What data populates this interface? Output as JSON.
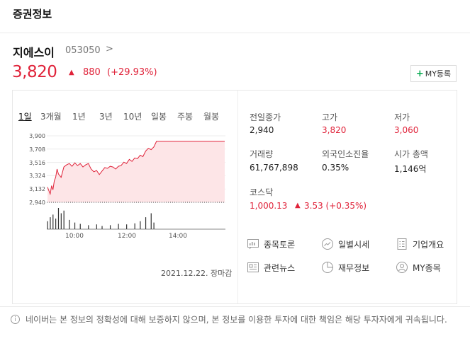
{
  "header": {
    "title": "증권정보"
  },
  "stock": {
    "name": "지에스이",
    "code": "053050",
    "code_arrow": ">",
    "price": "3,820",
    "change_arrow": "▲",
    "change": "880",
    "change_pct": "(+29.93%)",
    "my_button_plus": "+",
    "my_button_label": "MY등록"
  },
  "tabs": [
    {
      "label": "1일",
      "active": true
    },
    {
      "label": "3개월"
    },
    {
      "label": "1년"
    },
    {
      "label": "3년"
    },
    {
      "label": "10년"
    },
    {
      "label": "일봉"
    },
    {
      "label": "주봉"
    },
    {
      "label": "월봉"
    }
  ],
  "chart_data": {
    "type": "area",
    "y_tick_labels": [
      "3,900",
      "3,708",
      "3,516",
      "3,324",
      "3,132",
      "2,940"
    ],
    "x_tick_labels": [
      "10:00",
      "12:00",
      "14:00"
    ],
    "ylim": [
      2940,
      3900
    ],
    "reference_price": 2940,
    "price_x_hours": [
      9.0,
      9.05,
      9.1,
      9.15,
      9.2,
      9.25,
      9.3,
      9.35,
      9.4,
      9.5,
      9.6,
      9.7,
      9.8,
      9.9,
      10.0,
      10.1,
      10.2,
      10.3,
      10.4,
      10.5,
      10.6,
      10.7,
      10.8,
      10.9,
      11.0,
      11.1,
      11.2,
      11.3,
      11.4,
      11.5,
      11.6,
      11.7,
      11.8,
      11.9,
      12.0,
      12.1,
      12.2,
      12.3,
      12.4,
      12.5,
      12.6,
      12.7,
      12.8,
      12.9,
      13.0,
      13.5,
      14.0,
      14.5,
      15.0,
      15.5
    ],
    "price_values": [
      3160,
      3110,
      3060,
      3180,
      3120,
      3250,
      3300,
      3420,
      3350,
      3300,
      3450,
      3480,
      3500,
      3460,
      3510,
      3470,
      3500,
      3450,
      3480,
      3500,
      3420,
      3380,
      3400,
      3340,
      3390,
      3440,
      3430,
      3460,
      3450,
      3420,
      3460,
      3470,
      3520,
      3500,
      3560,
      3530,
      3580,
      3570,
      3620,
      3600,
      3680,
      3720,
      3700,
      3740,
      3820,
      3820,
      3820,
      3820,
      3820,
      3820
    ],
    "volume_x_hours": [
      9.0,
      9.1,
      9.2,
      9.3,
      9.4,
      9.5,
      9.6,
      9.8,
      10.0,
      10.2,
      10.5,
      10.8,
      11.0,
      11.3,
      11.6,
      11.9,
      12.2,
      12.4,
      12.6,
      12.8,
      12.9
    ],
    "volume_values": [
      30,
      45,
      55,
      40,
      80,
      60,
      70,
      35,
      25,
      20,
      15,
      18,
      12,
      15,
      20,
      18,
      22,
      30,
      45,
      60,
      25
    ],
    "session_hours": [
      9.0,
      15.5
    ]
  },
  "chart_status": "2021.12.22. 장마감",
  "info": {
    "prev_close_label": "전일종가",
    "prev_close": "2,940",
    "high_label": "고가",
    "high": "3,820",
    "low_label": "저가",
    "low": "3,060",
    "volume_label": "거래량",
    "volume": "61,767,898",
    "foreign_label": "외국인소진율",
    "foreign": "0.35%",
    "mcap_label": "시가 총액",
    "mcap": "1,146억",
    "kosdaq_label": "코스닥",
    "kosdaq": "1,000.13",
    "kosdaq_arrow": "▲",
    "kosdaq_change": "3.53 (+0.35%)"
  },
  "links": {
    "discussion": "종목토론",
    "daily": "일별시세",
    "company": "기업개요",
    "news": "관련뉴스",
    "finance": "재무정보",
    "my_stocks": "MY종목"
  },
  "footer": {
    "icon": "i",
    "notice": "네이버는 본 정보의 정확성에 대해 보증하지 않으며, 본 정보를 이용한 투자에 대한 책임은 해당 투자자에게 귀속됩니다."
  },
  "colors": {
    "up": "#e0233a",
    "area_fill": "#fde5e7",
    "line": "#e0233a",
    "volume": "#333333",
    "plus": "#03a94d"
  }
}
